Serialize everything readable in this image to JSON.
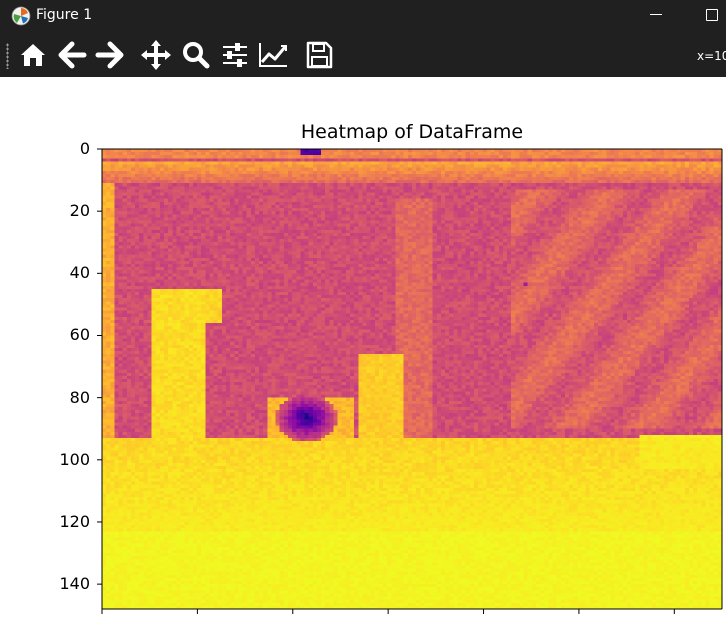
{
  "window": {
    "title": "Figure 1",
    "icon": "matplotlib-logo-icon",
    "controls": [
      "minimize",
      "maximize"
    ]
  },
  "toolbar": {
    "buttons": [
      {
        "id": "home",
        "icon": "home-icon",
        "label": "Home"
      },
      {
        "id": "back",
        "icon": "arrow-left-icon",
        "label": "Back"
      },
      {
        "id": "forward",
        "icon": "arrow-right-icon",
        "label": "Forward"
      },
      {
        "id": "pan",
        "icon": "move-arrows-icon",
        "label": "Pan"
      },
      {
        "id": "zoom",
        "icon": "magnifier-icon",
        "label": "Zoom"
      },
      {
        "id": "subplots",
        "icon": "sliders-icon",
        "label": "Configure subplots"
      },
      {
        "id": "edit",
        "icon": "line-chart-icon",
        "label": "Edit axis"
      },
      {
        "id": "save",
        "icon": "floppy-disk-icon",
        "label": "Save"
      }
    ],
    "coords_text": "x=10"
  },
  "chart_data": {
    "type": "heatmap",
    "title": "Heatmap of DataFrame",
    "colormap": "plasma",
    "y_ticks": [
      "0",
      "20",
      "40",
      "60",
      "80",
      "100",
      "120",
      "140"
    ],
    "y_range": [
      0,
      148
    ],
    "x_tick_labels_visible": false,
    "rows": 148,
    "colors": {
      "dark_purple": "#0d0887",
      "magenta": "#c8437b",
      "orange": "#f48849",
      "yellow": "#f0f921"
    }
  }
}
